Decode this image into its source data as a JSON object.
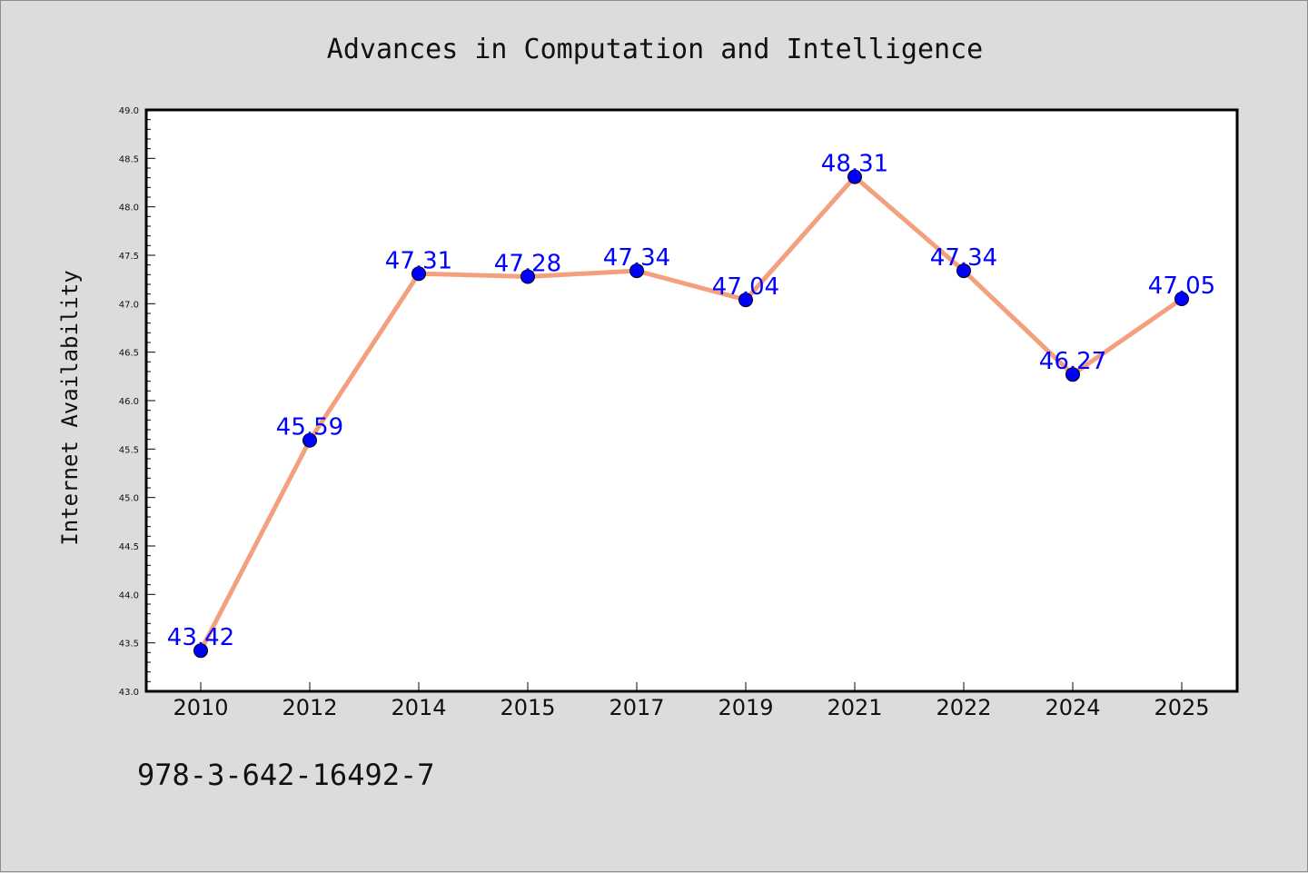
{
  "chart_data": {
    "type": "line",
    "title": "Advances in Computation and Intelligence",
    "xlabel": "",
    "ylabel": "Internet Availability",
    "categories": [
      "2010",
      "2012",
      "2014",
      "2015",
      "2017",
      "2019",
      "2021",
      "2022",
      "2024",
      "2025"
    ],
    "series": [
      {
        "values": [
          43.42,
          45.59,
          47.31,
          47.28,
          47.34,
          47.04,
          48.31,
          47.34,
          46.27,
          47.05
        ]
      }
    ],
    "data_labels": [
      "43.42",
      "45.59",
      "47.31",
      "47.28",
      "47.34",
      "47.04",
      "48.31",
      "47.34",
      "46.27",
      "47.05"
    ],
    "ylim": [
      43.0,
      49.0
    ],
    "yticks": [
      "43.0",
      "43.5",
      "44.0",
      "44.5",
      "45.0",
      "45.5",
      "46.0",
      "46.5",
      "47.0",
      "47.5",
      "48.0",
      "48.5",
      "49.0"
    ],
    "grid": false,
    "legend": "none",
    "colors": {
      "line": "#f4a07f",
      "marker": "#0000ff",
      "labels": "#0000ff",
      "background": "#dcdcdc",
      "plot_bg": "#ffffff"
    }
  },
  "footer_text": "978-3-642-16492-7"
}
